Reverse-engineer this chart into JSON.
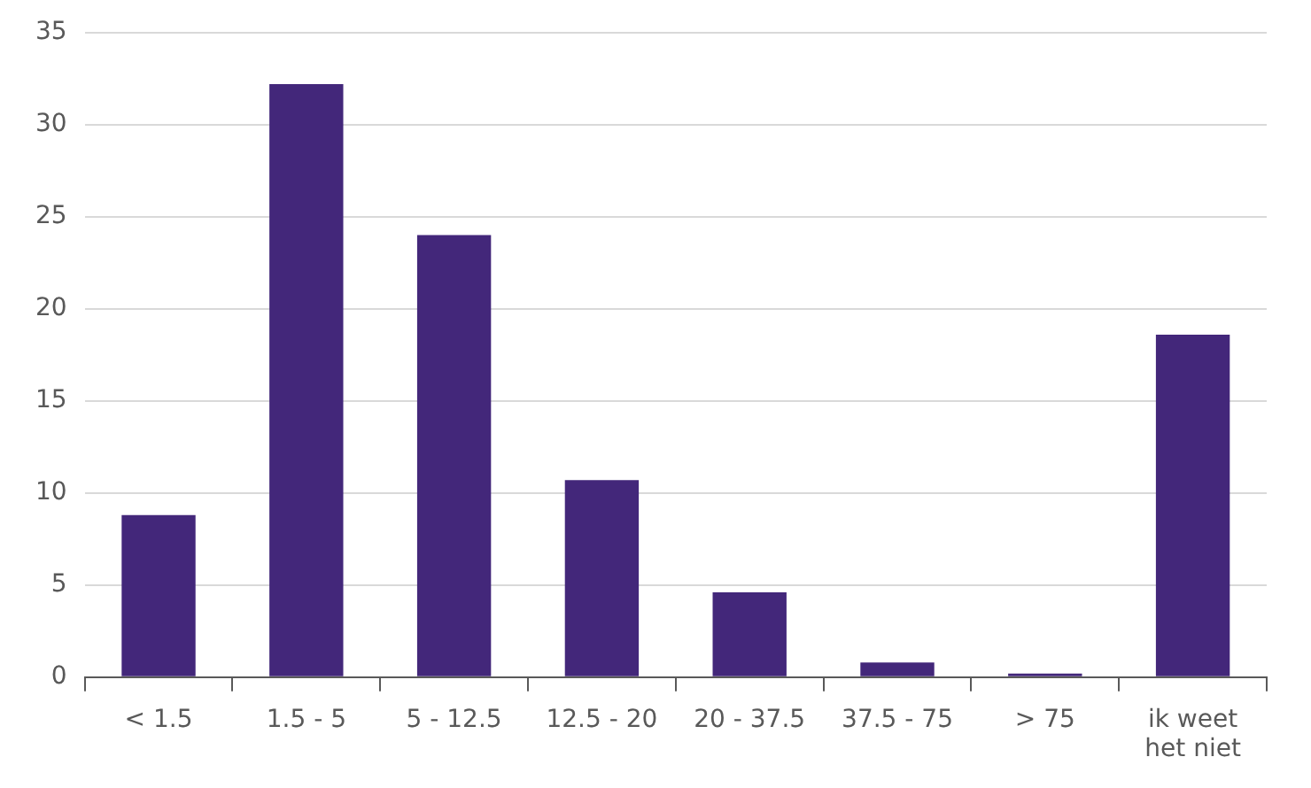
{
  "chart_data": {
    "type": "bar",
    "categories": [
      "< 1.5",
      "1.5 - 5",
      "5 - 12.5",
      "12.5 - 20",
      "20 - 37.5",
      "37.5 - 75",
      "> 75",
      "ik weet het niet"
    ],
    "values": [
      8.8,
      32.2,
      24,
      10.7,
      4.6,
      0.8,
      0.2,
      18.6
    ],
    "color": "#43277a",
    "ylim": [
      0,
      35
    ],
    "yticks": [
      0,
      5,
      10,
      15,
      20,
      25,
      30,
      35
    ],
    "grid": "y",
    "legend": false
  }
}
